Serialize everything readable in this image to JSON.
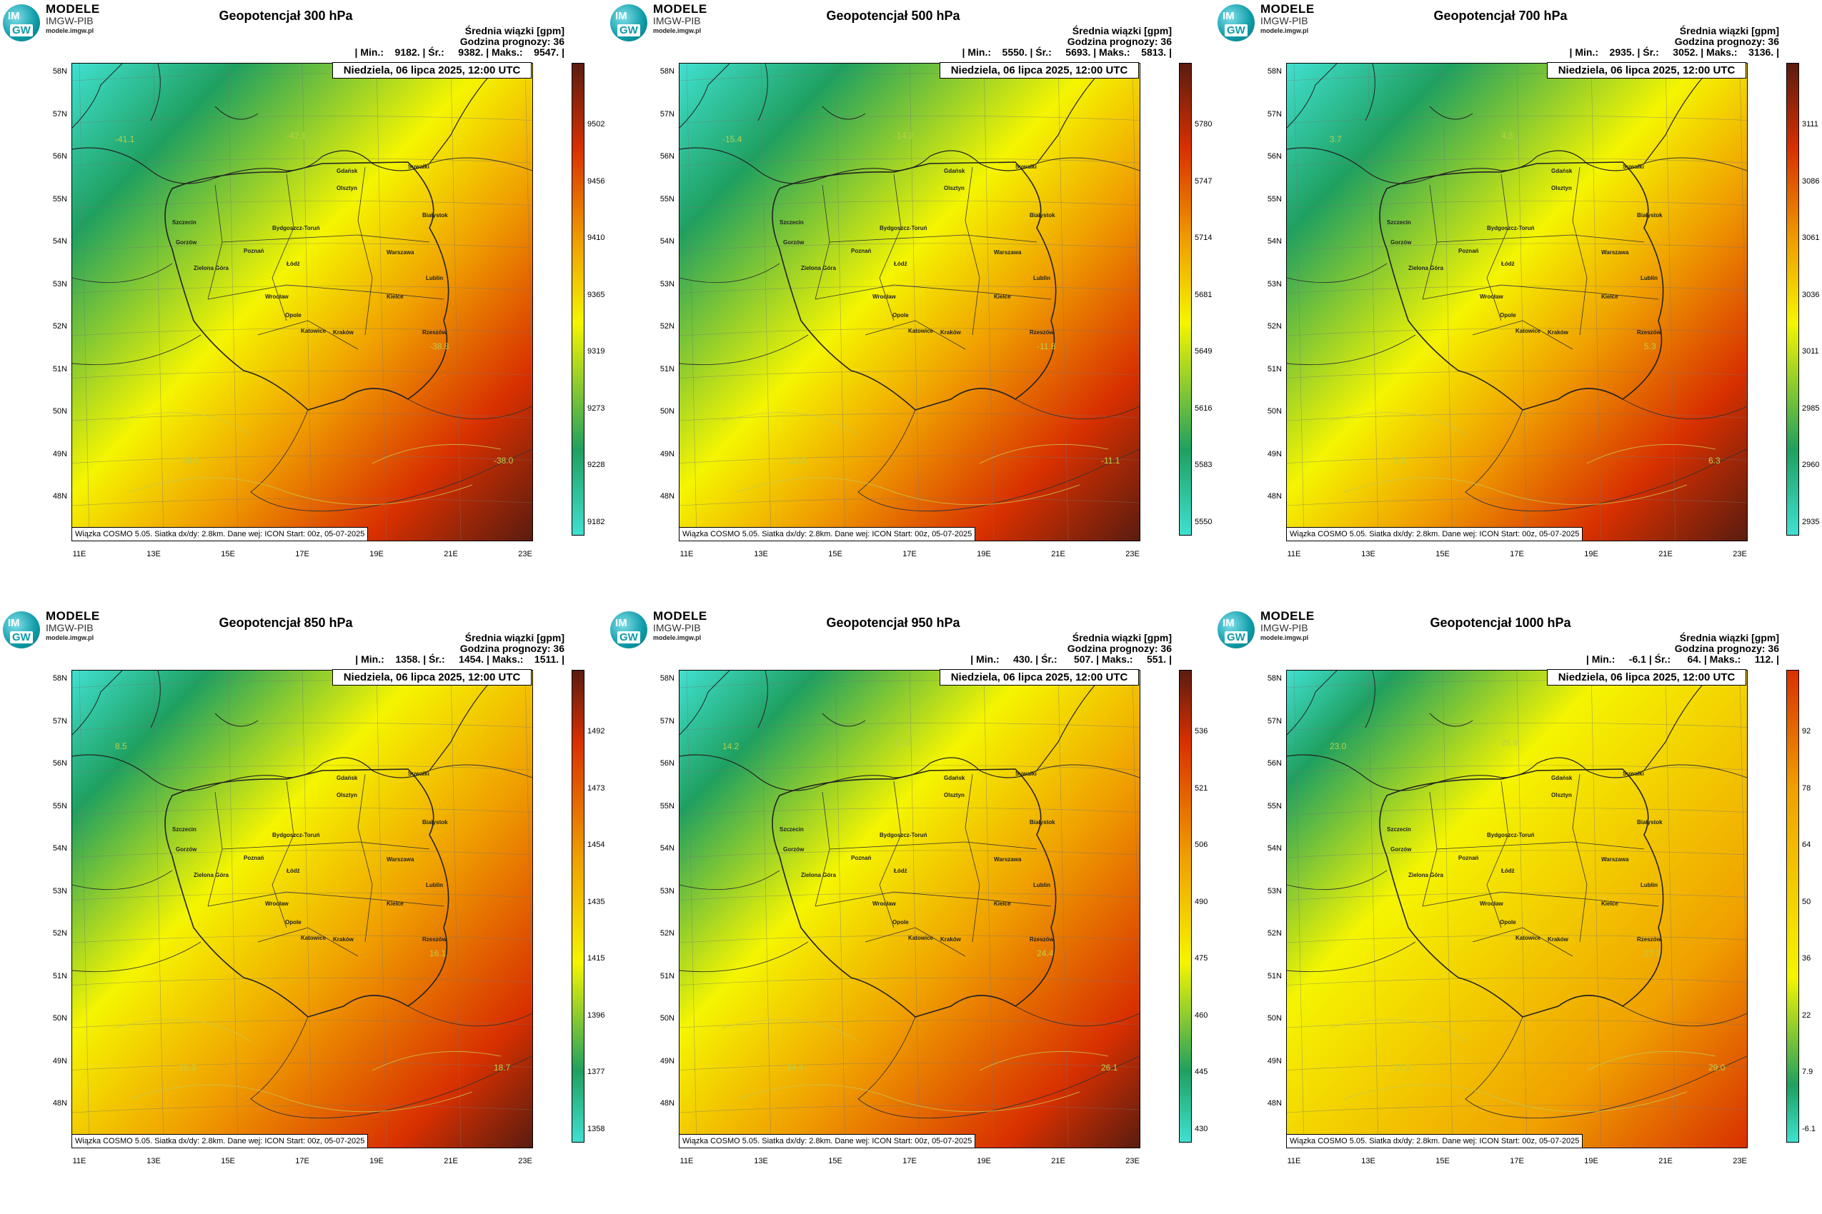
{
  "logo": {
    "line1": "MODELE",
    "line2": "IMGW-PIB",
    "line3": "modele.imgw.pl",
    "mark_top": "IM",
    "mark_bottom": "GW"
  },
  "info_label": "Średnia wiązki [gpm]",
  "forecast_hour_label": "Godzina prognozy: 36",
  "valid_time": "Niedziela, 06 lipca 2025, 12:00 UTC",
  "footer": "Wiązka COSMO 5.05. Siatka dx/dy: 2.8km. Dane wej: ICON Start: 00z, 05-07-2025",
  "lat_labels": [
    "58N",
    "57N",
    "56N",
    "55N",
    "54N",
    "53N",
    "52N",
    "51N",
    "50N",
    "49N",
    "48N"
  ],
  "lon_labels": [
    "11E",
    "13E",
    "15E",
    "17E",
    "19E",
    "21E",
    "23E"
  ],
  "cities": [
    "Gdańsk",
    "Suwałki",
    "Olsztyn",
    "Szczecin",
    "Bydgoszcz-Toruń",
    "Białystok",
    "Gorzów",
    "Poznań",
    "Warszawa",
    "Zielona Góra",
    "Łódź",
    "Lublin",
    "Wrocław",
    "Kielce",
    "Opole",
    "Katowice",
    "Kraków",
    "Rzeszów"
  ],
  "colors": {
    "low": "#40e0d0",
    "green": "#1fa060",
    "yellow": "#f5f500",
    "orange": "#f0a000",
    "red": "#d83000",
    "darkred": "#5a1c10"
  },
  "panels": [
    {
      "title": "Geopotencjał 300 hPa",
      "stats": "| Min.:    9182. | Śr.:     9382. | Maks.:    9547. |",
      "colorbar": [
        "9502",
        "9456",
        "9410",
        "9365",
        "9319",
        "9273",
        "9228",
        "9182"
      ],
      "contours": [
        "-41.1",
        "-42.1",
        "-38.0",
        "-38.8",
        "-38.0"
      ],
      "scheme": "upper"
    },
    {
      "title": "Geopotencjał 500 hPa",
      "stats": "| Min.:    5550. | Śr.:     5693. | Maks.:    5813. |",
      "colorbar": [
        "5780",
        "5747",
        "5714",
        "5681",
        "5649",
        "5616",
        "5583",
        "5550"
      ],
      "contours": [
        "-15.4",
        "-14.2",
        "-12.0",
        "-11.8",
        "-11.1"
      ],
      "scheme": "upper"
    },
    {
      "title": "Geopotencjał 700 hPa",
      "stats": "| Min.:    2935. | Śr.:     3052. | Maks.:    3136. |",
      "colorbar": [
        "3111",
        "3086",
        "3061",
        "3036",
        "3011",
        "2985",
        "2960",
        "2935"
      ],
      "contours": [
        "3.7",
        "4.3",
        "5.3",
        "5.3",
        "6.3"
      ],
      "scheme": "upper"
    },
    {
      "title": "Geopotencjał 850 hPa",
      "stats": "| Min.:    1358. | Śr.:     1454. | Maks.:    1511. |",
      "colorbar": [
        "1492",
        "1473",
        "1454",
        "1435",
        "1415",
        "1396",
        "1377",
        "1358"
      ],
      "contours": [
        "8.5",
        "12.5",
        "15.3",
        "16.1",
        "18.7"
      ],
      "scheme": "mid"
    },
    {
      "title": "Geopotencjał 950 hPa",
      "stats": "| Min.:     430. | Śr.:      507. | Maks.:     551. |",
      "colorbar": [
        "536",
        "521",
        "506",
        "490",
        "475",
        "460",
        "445",
        "430"
      ],
      "contours": [
        "14.2",
        "17.6",
        "24.4",
        "24.4",
        "26.1"
      ],
      "scheme": "mid"
    },
    {
      "title": "Geopotencjał 1000 hPa",
      "stats": "| Min.:     -6.1 | Śr.:      64. | Maks.:     112. |",
      "colorbar": [
        "92",
        "78",
        "64",
        "50",
        "36",
        "22",
        "7.9",
        "-6.1"
      ],
      "contours": [
        "23.0",
        "26.8",
        "27.3",
        "27.3",
        "29.0"
      ],
      "scheme": "low"
    }
  ]
}
